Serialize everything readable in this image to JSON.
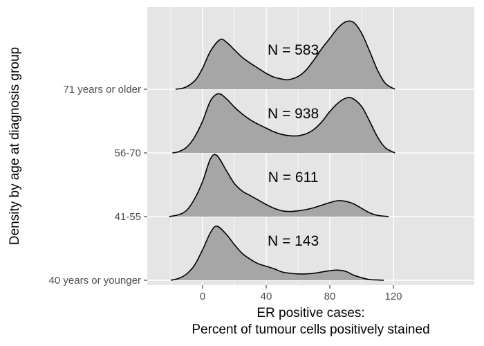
{
  "chart_data": {
    "type": "ridgeline",
    "xlabel_line1": "ER positive cases:",
    "xlabel_line2": "Percent of tumour cells positively stained",
    "ylabel": "Density by age at diagnosis group",
    "xlim": [
      -25,
      125
    ],
    "x_ticks": [
      0,
      40,
      80,
      120
    ],
    "grid": true,
    "fill_color": "#a6a6a6",
    "panel_color": "#e5e5e5",
    "ridges": [
      {
        "label": "40 years or younger",
        "annotation": "N = 143",
        "x": [
          -20,
          -15,
          -10,
          -5,
          0,
          5,
          9,
          15,
          20,
          25,
          30,
          35,
          40,
          45,
          50,
          55,
          60,
          65,
          70,
          75,
          80,
          85,
          90,
          95,
          100,
          105,
          110,
          114
        ],
        "y": [
          0.0,
          0.03,
          0.1,
          0.24,
          0.48,
          0.75,
          0.85,
          0.72,
          0.56,
          0.42,
          0.33,
          0.26,
          0.22,
          0.18,
          0.13,
          0.11,
          0.1,
          0.1,
          0.11,
          0.13,
          0.15,
          0.16,
          0.14,
          0.08,
          0.04,
          0.01,
          0.005,
          0.0
        ]
      },
      {
        "label": "41-55",
        "annotation": "N = 611",
        "x": [
          -21,
          -15,
          -10,
          -5,
          0,
          5,
          9,
          15,
          20,
          25,
          30,
          35,
          40,
          45,
          50,
          55,
          60,
          65,
          70,
          75,
          80,
          85,
          90,
          95,
          100,
          105,
          110,
          117
        ],
        "y": [
          0.0,
          0.03,
          0.1,
          0.28,
          0.55,
          0.91,
          0.96,
          0.72,
          0.52,
          0.4,
          0.33,
          0.26,
          0.19,
          0.13,
          0.09,
          0.08,
          0.09,
          0.11,
          0.14,
          0.18,
          0.22,
          0.25,
          0.24,
          0.2,
          0.13,
          0.06,
          0.02,
          0.0
        ]
      },
      {
        "label": "56-70",
        "annotation": "N = 938",
        "x": [
          -19,
          -15,
          -10,
          -5,
          0,
          5,
          10,
          15,
          20,
          25,
          30,
          35,
          40,
          45,
          50,
          55,
          60,
          65,
          70,
          75,
          80,
          85,
          90,
          94,
          100,
          105,
          110,
          115,
          121
        ],
        "y": [
          0.0,
          0.02,
          0.09,
          0.25,
          0.5,
          0.82,
          0.93,
          0.85,
          0.72,
          0.61,
          0.52,
          0.45,
          0.39,
          0.33,
          0.29,
          0.27,
          0.27,
          0.3,
          0.37,
          0.49,
          0.65,
          0.78,
          0.86,
          0.86,
          0.73,
          0.5,
          0.25,
          0.08,
          0.0
        ]
      },
      {
        "label": "71 years or older",
        "annotation": "N = 583",
        "x": [
          -17,
          -12,
          -8,
          -4,
          0,
          5,
          11,
          15,
          20,
          25,
          30,
          35,
          40,
          45,
          50,
          54,
          60,
          65,
          70,
          75,
          80,
          85,
          90,
          95,
          100,
          105,
          110,
          115,
          121
        ],
        "y": [
          0.0,
          0.02,
          0.07,
          0.16,
          0.33,
          0.6,
          0.78,
          0.74,
          0.62,
          0.5,
          0.41,
          0.33,
          0.25,
          0.19,
          0.16,
          0.15,
          0.2,
          0.3,
          0.46,
          0.64,
          0.8,
          0.96,
          1.06,
          1.05,
          0.88,
          0.6,
          0.3,
          0.09,
          0.0
        ]
      }
    ]
  }
}
